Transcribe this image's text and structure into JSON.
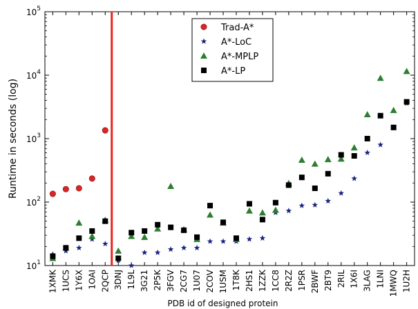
{
  "chart_data": {
    "type": "scatter",
    "title": "",
    "xlabel": "PDB id of designed protein",
    "ylabel": "Runtime in seconds (log)",
    "y_scale": "log",
    "ylim": [
      10,
      100000
    ],
    "y_ticks": [
      {
        "value": 10,
        "base": "10",
        "exp": "1"
      },
      {
        "value": 100,
        "base": "10",
        "exp": "2"
      },
      {
        "value": 1000,
        "base": "10",
        "exp": "3"
      },
      {
        "value": 10000,
        "base": "10",
        "exp": "4"
      },
      {
        "value": 100000,
        "base": "10",
        "exp": "5"
      }
    ],
    "grid": false,
    "legend_position": "top-center",
    "categories": [
      "1XMK",
      "1UCS",
      "1Y6X",
      "1OAI",
      "2QCP",
      "3DNJ",
      "1L9L",
      "3G21",
      "2P5K",
      "3FGV",
      "2CG7",
      "1U07",
      "2COV",
      "1USM",
      "1T8K",
      "2HS1",
      "1ZZK",
      "1CC8",
      "2R2Z",
      "1PSR",
      "2BWF",
      "2BT9",
      "2RIL",
      "1X6I",
      "3LAG",
      "1LNI",
      "1MWQ",
      "1U2H"
    ],
    "divider_after": "2QCP",
    "divider_color": "#e8231d",
    "series": [
      {
        "name": "Trad-A*",
        "marker": "circle",
        "color": "#d62728",
        "values": [
          135,
          160,
          165,
          235,
          1350,
          null,
          null,
          null,
          null,
          null,
          null,
          null,
          null,
          null,
          null,
          null,
          null,
          null,
          null,
          null,
          null,
          null,
          null,
          null,
          null,
          null,
          null,
          null
        ]
      },
      {
        "name": "A*-LoC",
        "marker": "star",
        "color": "#1a237e",
        "values": [
          15,
          17,
          19,
          26,
          22,
          12,
          10,
          16,
          16,
          18,
          19,
          19,
          24,
          24,
          24,
          26,
          27,
          68,
          73,
          88,
          90,
          104,
          138,
          235,
          600,
          800,
          1500,
          3600
        ]
      },
      {
        "name": "A*-MPLP",
        "marker": "triangle",
        "color": "#2e7d32",
        "values": [
          13,
          19,
          47,
          29,
          52,
          17,
          29,
          28,
          38,
          178,
          37,
          26,
          63,
          47,
          26,
          73,
          68,
          75,
          198,
          460,
          400,
          470,
          480,
          720,
          2400,
          9000,
          2800,
          11500
        ]
      },
      {
        "name": "A*-LP",
        "marker": "square",
        "color": "#000000",
        "values": [
          14,
          19,
          27,
          35,
          50,
          13,
          33,
          35,
          44,
          40,
          36,
          28,
          88,
          48,
          27,
          94,
          53,
          98,
          185,
          245,
          165,
          280,
          555,
          535,
          1000,
          2300,
          1500,
          3800
        ]
      }
    ]
  }
}
